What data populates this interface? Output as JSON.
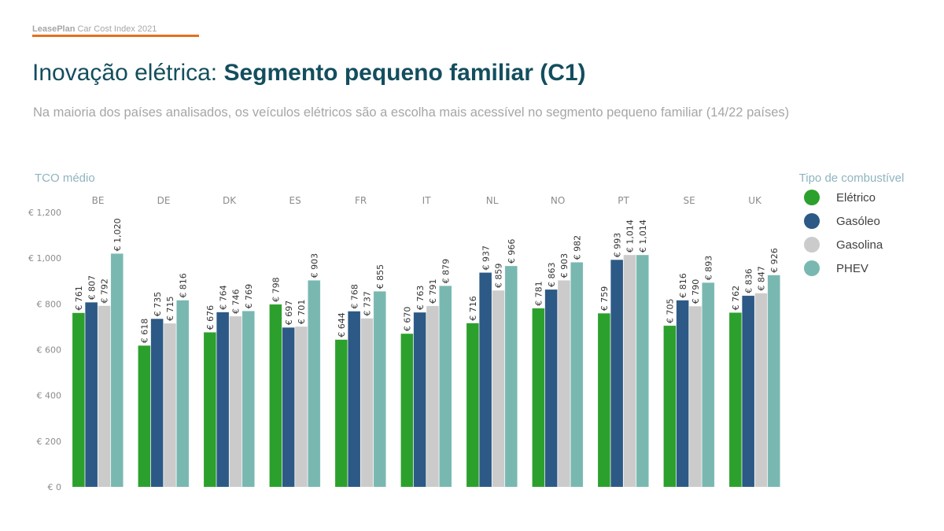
{
  "header": {
    "brand_bold": "LeasePlan",
    "brand_rest": " Car Cost Index 2021",
    "title_normal": "Inovação elétrica: ",
    "title_bold": "Segmento pequeno familiar (C1)",
    "subtitle": "Na maioria dos países analisados, os veículos elétricos são a escolha mais acessível no segmento pequeno familiar (14/22 países)"
  },
  "colors": {
    "accent_line": "#e4701e",
    "title": "#134e5e",
    "Elétrico": "#2ca02c",
    "Gasóleo": "#2c5985",
    "Gasolina": "#cbcbcb",
    "PHEV": "#79b8b1"
  },
  "chart_data": {
    "type": "bar",
    "title": "Inovação elétrica: Segmento pequeno familiar (C1)",
    "ylabel": "TCO médio",
    "xlabel": "",
    "ylim": [
      0,
      1200
    ],
    "yticks": [
      0,
      200,
      400,
      600,
      800,
      1000,
      1200
    ],
    "ytick_labels": [
      "€ 0",
      "€ 200",
      "€ 400",
      "€ 600",
      "€ 800",
      "€ 1,000",
      "€ 1,200"
    ],
    "grid": false,
    "legend_title": "Tipo de combustível",
    "legend_position": "right",
    "categories": [
      "BE",
      "DE",
      "DK",
      "ES",
      "FR",
      "IT",
      "NL",
      "NO",
      "PT",
      "SE",
      "UK"
    ],
    "series": [
      {
        "name": "Elétrico",
        "values": [
          761,
          618,
          676,
          798,
          644,
          670,
          716,
          781,
          759,
          705,
          762
        ]
      },
      {
        "name": "Gasóleo",
        "values": [
          807,
          735,
          764,
          697,
          768,
          763,
          937,
          863,
          993,
          816,
          836
        ]
      },
      {
        "name": "Gasolina",
        "values": [
          792,
          715,
          746,
          701,
          737,
          791,
          859,
          903,
          1014,
          790,
          847
        ]
      },
      {
        "name": "PHEV",
        "values": [
          1020,
          816,
          769,
          903,
          855,
          879,
          966,
          982,
          1014,
          893,
          926
        ]
      }
    ],
    "value_label_format": "€ {v}"
  }
}
